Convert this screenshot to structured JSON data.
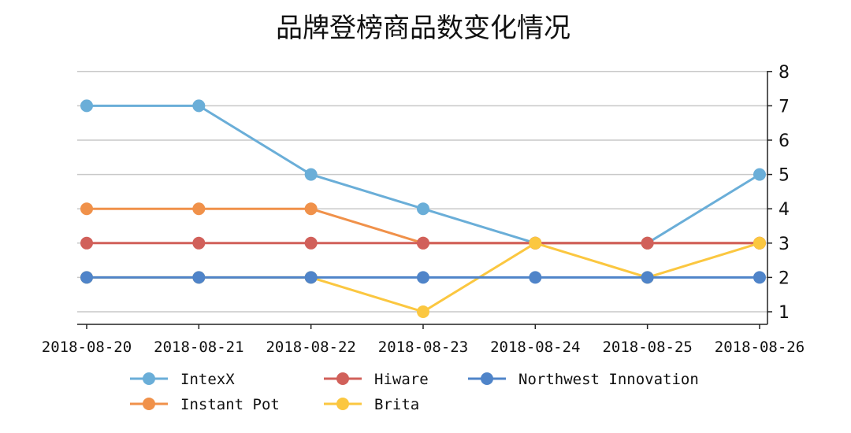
{
  "chart_data": {
    "type": "line",
    "title": "品牌登榜商品数变化情况",
    "xlabel": "",
    "ylabel": "",
    "categories": [
      "2018-08-20",
      "2018-08-21",
      "2018-08-22",
      "2018-08-23",
      "2018-08-24",
      "2018-08-25",
      "2018-08-26"
    ],
    "ylim": [
      0.6,
      8
    ],
    "yticks": [
      1,
      2,
      3,
      4,
      5,
      6,
      7,
      8
    ],
    "y_axis_side": "right",
    "grid": "horizontal",
    "legend_position": "bottom",
    "series": [
      {
        "name": "IntexX",
        "color": "#6aaed8",
        "values": [
          7,
          7,
          5,
          4,
          3,
          3,
          5
        ]
      },
      {
        "name": "Instant Pot",
        "color": "#f0914a",
        "values": [
          4,
          4,
          4,
          3,
          3,
          3,
          3
        ]
      },
      {
        "name": "Hiware",
        "color": "#d1605a",
        "values": [
          3,
          3,
          3,
          3,
          3,
          3,
          3
        ]
      },
      {
        "name": "Brita",
        "color": "#fbc740",
        "values": [
          2,
          2,
          2,
          1,
          3,
          2,
          3
        ]
      },
      {
        "name": "Northwest Innovation",
        "color": "#4f84c9",
        "values": [
          2,
          2,
          2,
          2,
          2,
          2,
          2
        ]
      }
    ]
  }
}
